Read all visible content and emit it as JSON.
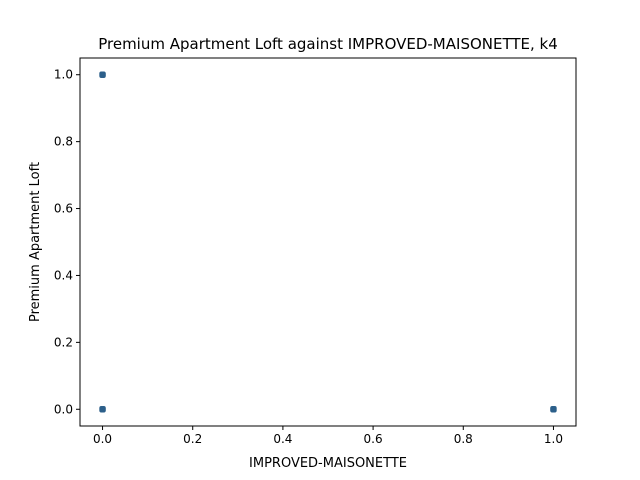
{
  "chart_data": {
    "type": "scatter",
    "title": "Premium Apartment Loft against IMPROVED-MAISONETTE, k4",
    "xlabel": "IMPROVED-MAISONETTE",
    "ylabel": "Premium Apartment Loft",
    "xlim": [
      -0.05,
      1.05
    ],
    "ylim": [
      -0.05,
      1.05
    ],
    "xticks": [
      0.0,
      0.2,
      0.4,
      0.6,
      0.8,
      1.0
    ],
    "yticks": [
      0.0,
      0.2,
      0.4,
      0.6,
      0.8,
      1.0
    ],
    "xtick_labels": [
      "0.0",
      "0.2",
      "0.4",
      "0.6",
      "0.8",
      "1.0"
    ],
    "ytick_labels": [
      "0.0",
      "0.2",
      "0.4",
      "0.6",
      "0.8",
      "1.0"
    ],
    "grid": false,
    "series": [
      {
        "name": "k4",
        "color": "#2c5f8a",
        "points": [
          {
            "x": 0.0,
            "y": 1.0
          },
          {
            "x": 0.0,
            "y": 0.0
          },
          {
            "x": 1.0,
            "y": 0.0
          }
        ]
      }
    ]
  }
}
